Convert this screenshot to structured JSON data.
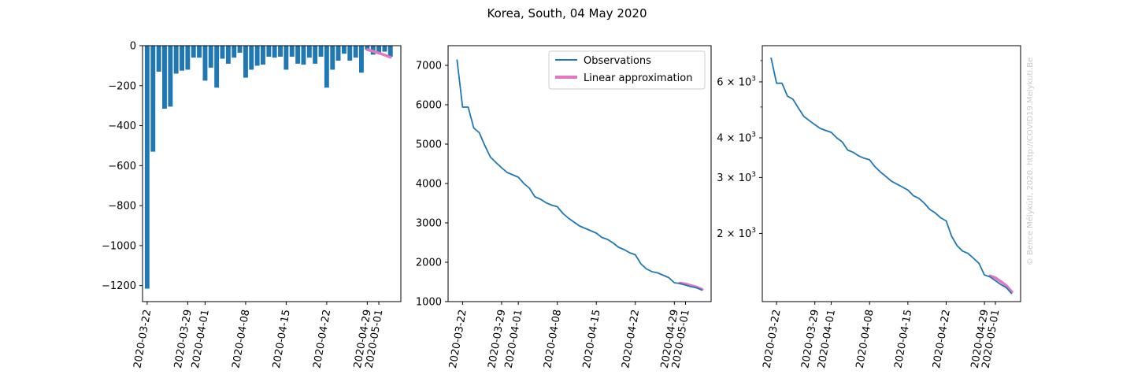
{
  "title": "Korea, South, 04 May 2020",
  "watermark": "© Bence Mélykúti, 2020. http://COVID19.Melykuti.Be",
  "colors": {
    "bar": "#1f77b4",
    "observations": "#1f77b4",
    "approximation": "#e377c2"
  },
  "legend": {
    "observations": "Observations",
    "approximation": "Linear approximation",
    "placement": "upper right (middle panel)"
  },
  "chart_data": [
    {
      "type": "bar",
      "x_tick_labels": [
        "2020-03-22",
        "2020-03-29",
        "2020-04-01",
        "2020-04-08",
        "2020-04-15",
        "2020-04-22",
        "2020-04-29",
        "2020-05-01"
      ],
      "y_ticks": [
        0,
        -200,
        -400,
        -600,
        -800,
        -1000,
        -1200
      ],
      "y_tick_labels": [
        "0",
        "−200",
        "−400",
        "−600",
        "−800",
        "−1000",
        "−1200"
      ],
      "x_range": [
        "2020-03-22",
        "2020-05-04"
      ],
      "ylim": [
        -1280,
        0
      ],
      "dates": [
        "2020-03-22",
        "2020-03-23",
        "2020-03-24",
        "2020-03-25",
        "2020-03-26",
        "2020-03-27",
        "2020-03-28",
        "2020-03-29",
        "2020-03-30",
        "2020-03-31",
        "2020-04-01",
        "2020-04-02",
        "2020-04-03",
        "2020-04-04",
        "2020-04-05",
        "2020-04-06",
        "2020-04-07",
        "2020-04-08",
        "2020-04-09",
        "2020-04-10",
        "2020-04-11",
        "2020-04-12",
        "2020-04-13",
        "2020-04-14",
        "2020-04-15",
        "2020-04-16",
        "2020-04-17",
        "2020-04-18",
        "2020-04-19",
        "2020-04-20",
        "2020-04-21",
        "2020-04-22",
        "2020-04-23",
        "2020-04-24",
        "2020-04-25",
        "2020-04-26",
        "2020-04-27",
        "2020-04-28",
        "2020-04-29",
        "2020-04-30",
        "2020-05-01",
        "2020-05-02",
        "2020-05-03"
      ],
      "values": [
        -1215,
        -530,
        -130,
        -315,
        -305,
        -140,
        -125,
        -120,
        -60,
        -60,
        -175,
        -110,
        -210,
        -65,
        -90,
        -60,
        -35,
        -160,
        -120,
        -100,
        -95,
        -55,
        -60,
        -55,
        -120,
        -55,
        -90,
        -95,
        -60,
        -90,
        -55,
        -210,
        -120,
        -75,
        -40,
        -75,
        -60,
        -135,
        -20,
        -45,
        -40,
        -30,
        -55
      ],
      "series": [
        {
          "name": "Linear approximation",
          "x": [
            "2020-04-29",
            "2020-04-30",
            "2020-05-01",
            "2020-05-02",
            "2020-05-03"
          ],
          "y": [
            -20,
            -28,
            -37,
            -47,
            -58
          ]
        }
      ]
    },
    {
      "type": "line",
      "x_tick_labels": [
        "2020-03-22",
        "2020-03-29",
        "2020-04-01",
        "2020-04-08",
        "2020-04-15",
        "2020-04-22",
        "2020-04-29",
        "2020-05-01"
      ],
      "y_ticks": [
        1000,
        2000,
        3000,
        4000,
        5000,
        6000,
        7000
      ],
      "y_tick_labels": [
        "1000",
        "2000",
        "3000",
        "4000",
        "5000",
        "6000",
        "7000"
      ],
      "x_range": [
        "2020-03-20",
        "2020-05-05"
      ],
      "ylim": [
        1000,
        7500
      ],
      "series": [
        {
          "name": "Observations",
          "x": [
            "2020-03-21",
            "2020-03-22",
            "2020-03-23",
            "2020-03-24",
            "2020-03-25",
            "2020-03-26",
            "2020-03-27",
            "2020-03-28",
            "2020-03-29",
            "2020-03-30",
            "2020-03-31",
            "2020-04-01",
            "2020-04-02",
            "2020-04-03",
            "2020-04-04",
            "2020-04-05",
            "2020-04-06",
            "2020-04-07",
            "2020-04-08",
            "2020-04-09",
            "2020-04-10",
            "2020-04-11",
            "2020-04-12",
            "2020-04-13",
            "2020-04-14",
            "2020-04-15",
            "2020-04-16",
            "2020-04-17",
            "2020-04-18",
            "2020-04-19",
            "2020-04-20",
            "2020-04-21",
            "2020-04-22",
            "2020-04-23",
            "2020-04-24",
            "2020-04-25",
            "2020-04-26",
            "2020-04-27",
            "2020-04-28",
            "2020-04-29",
            "2020-04-30",
            "2020-05-01",
            "2020-05-02",
            "2020-05-03",
            "2020-05-04"
          ],
          "y": [
            7150,
            5940,
            5940,
            5410,
            5290,
            4960,
            4670,
            4530,
            4400,
            4280,
            4220,
            4160,
            4000,
            3880,
            3660,
            3600,
            3510,
            3450,
            3410,
            3240,
            3120,
            3020,
            2920,
            2860,
            2800,
            2740,
            2630,
            2580,
            2490,
            2380,
            2320,
            2240,
            2190,
            1960,
            1830,
            1760,
            1730,
            1670,
            1610,
            1480,
            1460,
            1420,
            1380,
            1350,
            1290
          ]
        },
        {
          "name": "Linear approximation",
          "x": [
            "2020-04-30",
            "2020-05-01",
            "2020-05-02",
            "2020-05-03",
            "2020-05-04"
          ],
          "y": [
            1470,
            1450,
            1410,
            1370,
            1310
          ]
        }
      ]
    },
    {
      "type": "line",
      "scale": "log",
      "x_tick_labels": [
        "2020-03-22",
        "2020-03-29",
        "2020-04-01",
        "2020-04-08",
        "2020-04-15",
        "2020-04-22",
        "2020-04-29",
        "2020-05-01"
      ],
      "y_ticks": [
        2000,
        3000,
        4000,
        6000
      ],
      "y_tick_labels": [
        {
          "base": "2 × 10",
          "exp": "3"
        },
        {
          "base": "3 × 10",
          "exp": "3"
        },
        {
          "base": "4 × 10",
          "exp": "3"
        },
        {
          "base": "6 × 10",
          "exp": "3"
        }
      ],
      "y_minor_ticks": [
        5000,
        7000
      ],
      "x_range": [
        "2020-03-20",
        "2020-05-05"
      ],
      "ylim": [
        1220,
        7800
      ],
      "series_ref": "same data as middle panel"
    }
  ]
}
